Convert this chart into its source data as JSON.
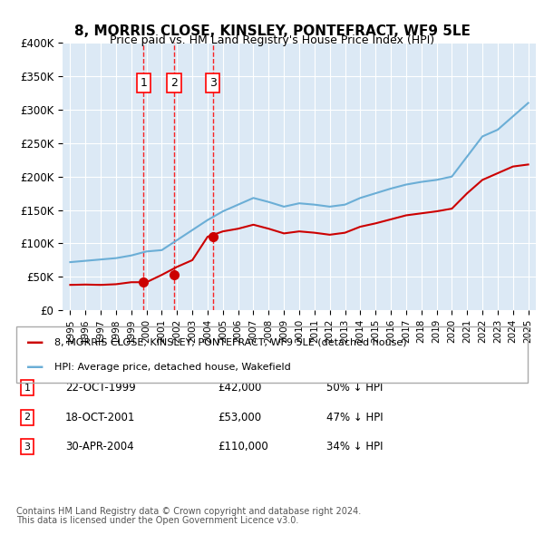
{
  "title": "8, MORRIS CLOSE, KINSLEY, PONTEFRACT, WF9 5LE",
  "subtitle": "Price paid vs. HM Land Registry's House Price Index (HPI)",
  "legend_label_red": "8, MORRIS CLOSE, KINSLEY, PONTEFRACT, WF9 5LE (detached house)",
  "legend_label_blue": "HPI: Average price, detached house, Wakefield",
  "footnote1": "Contains HM Land Registry data © Crown copyright and database right 2024.",
  "footnote2": "This data is licensed under the Open Government Licence v3.0.",
  "background_color": "#dce9f5",
  "plot_bg_color": "#dce9f5",
  "sales": [
    {
      "num": 1,
      "date": "22-OCT-1999",
      "price": 42000,
      "pct": "50%",
      "year": 1999.8
    },
    {
      "num": 2,
      "date": "18-OCT-2001",
      "price": 53000,
      "pct": "47%",
      "year": 2001.8
    },
    {
      "num": 3,
      "date": "30-APR-2004",
      "price": 110000,
      "pct": "34%",
      "year": 2004.33
    }
  ],
  "hpi_years": [
    1995,
    1996,
    1997,
    1998,
    1999,
    2000,
    2001,
    2002,
    2003,
    2004,
    2005,
    2006,
    2007,
    2008,
    2009,
    2010,
    2011,
    2012,
    2013,
    2014,
    2015,
    2016,
    2017,
    2018,
    2019,
    2020,
    2021,
    2022,
    2023,
    2024,
    2025
  ],
  "hpi_values": [
    72000,
    74000,
    76000,
    78000,
    82000,
    88000,
    90000,
    105000,
    120000,
    135000,
    148000,
    158000,
    168000,
    162000,
    155000,
    160000,
    158000,
    155000,
    158000,
    168000,
    175000,
    182000,
    188000,
    192000,
    195000,
    200000,
    230000,
    260000,
    270000,
    290000,
    310000
  ],
  "red_years": [
    1995,
    1996,
    1997,
    1998,
    1999,
    2000,
    2001,
    2002,
    2003,
    2004,
    2005,
    2006,
    2007,
    2008,
    2009,
    2010,
    2011,
    2012,
    2013,
    2014,
    2015,
    2016,
    2017,
    2018,
    2019,
    2020,
    2021,
    2022,
    2023,
    2024,
    2025
  ],
  "red_values": [
    38000,
    38500,
    38000,
    39000,
    42000,
    42000,
    53000,
    65000,
    75000,
    110000,
    118000,
    122000,
    128000,
    122000,
    115000,
    118000,
    116000,
    113000,
    116000,
    125000,
    130000,
    136000,
    142000,
    145000,
    148000,
    152000,
    175000,
    195000,
    205000,
    215000,
    218000
  ],
  "ylim": [
    0,
    400000
  ],
  "yticks": [
    0,
    50000,
    100000,
    150000,
    200000,
    250000,
    300000,
    350000,
    400000
  ],
  "xlim": [
    1994.5,
    2025.5
  ],
  "xticks": [
    1995,
    1996,
    1997,
    1998,
    1999,
    2000,
    2001,
    2002,
    2003,
    2004,
    2005,
    2006,
    2007,
    2008,
    2009,
    2010,
    2011,
    2012,
    2013,
    2014,
    2015,
    2016,
    2017,
    2018,
    2019,
    2020,
    2021,
    2022,
    2023,
    2024,
    2025
  ]
}
